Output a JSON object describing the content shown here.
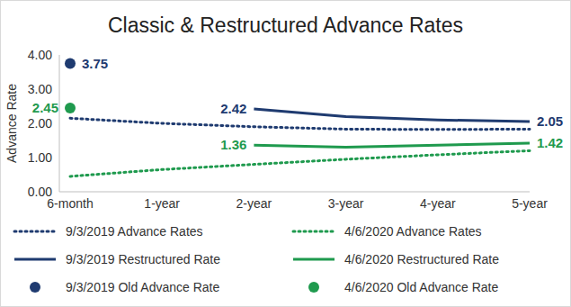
{
  "chart_data": {
    "type": "line",
    "title": "Classic & Restructured Advance Rates",
    "y_label": "Advance Rate",
    "categories": [
      "6-month",
      "1-year",
      "2-year",
      "3-year",
      "4-year",
      "5-year"
    ],
    "ylim": [
      0,
      4
    ],
    "yticks": [
      {
        "value": 0,
        "label": "0.00"
      },
      {
        "value": 1,
        "label": "1.00"
      },
      {
        "value": 2,
        "label": "2.00"
      },
      {
        "value": 3,
        "label": "3.00"
      },
      {
        "value": 4,
        "label": "4.00"
      }
    ],
    "grid": false,
    "legend": "bottom",
    "series": [
      {
        "name": "9/3/2019 Advance Rates",
        "color": "#1f3b70",
        "line_style": "dotted",
        "values": [
          2.15,
          2.0,
          1.9,
          1.83,
          1.82,
          1.83
        ]
      },
      {
        "name": "4/6/2020 Advance Rates",
        "color": "#1f9a4e",
        "line_style": "dotted",
        "values": [
          0.45,
          0.65,
          0.8,
          0.95,
          1.08,
          1.2
        ]
      },
      {
        "name": "9/3/2019 Restructured Rate",
        "color": "#1f3b70",
        "line_style": "solid",
        "values": [
          null,
          null,
          2.42,
          2.2,
          2.1,
          2.05
        ],
        "value_labels": [
          null,
          null,
          "2.42",
          null,
          null,
          "2.05"
        ]
      },
      {
        "name": "4/6/2020 Restructured Rate",
        "color": "#1f9a4e",
        "line_style": "solid",
        "values": [
          null,
          null,
          1.36,
          1.3,
          1.36,
          1.42
        ],
        "value_labels": [
          null,
          null,
          "1.36",
          null,
          null,
          "1.42"
        ]
      },
      {
        "name": "9/3/2019 Old Advance Rate",
        "color": "#1f3b70",
        "line_style": "none",
        "marker": "circle",
        "values": [
          3.75,
          null,
          null,
          null,
          null,
          null
        ],
        "value_labels": [
          "3.75",
          null,
          null,
          null,
          null,
          null
        ]
      },
      {
        "name": "4/6/2020 Old Advance Rate",
        "color": "#1f9a4e",
        "line_style": "none",
        "marker": "circle",
        "values": [
          2.45,
          null,
          null,
          null,
          null,
          null
        ],
        "value_labels": [
          "2.45",
          null,
          null,
          null,
          null,
          null
        ]
      }
    ]
  }
}
